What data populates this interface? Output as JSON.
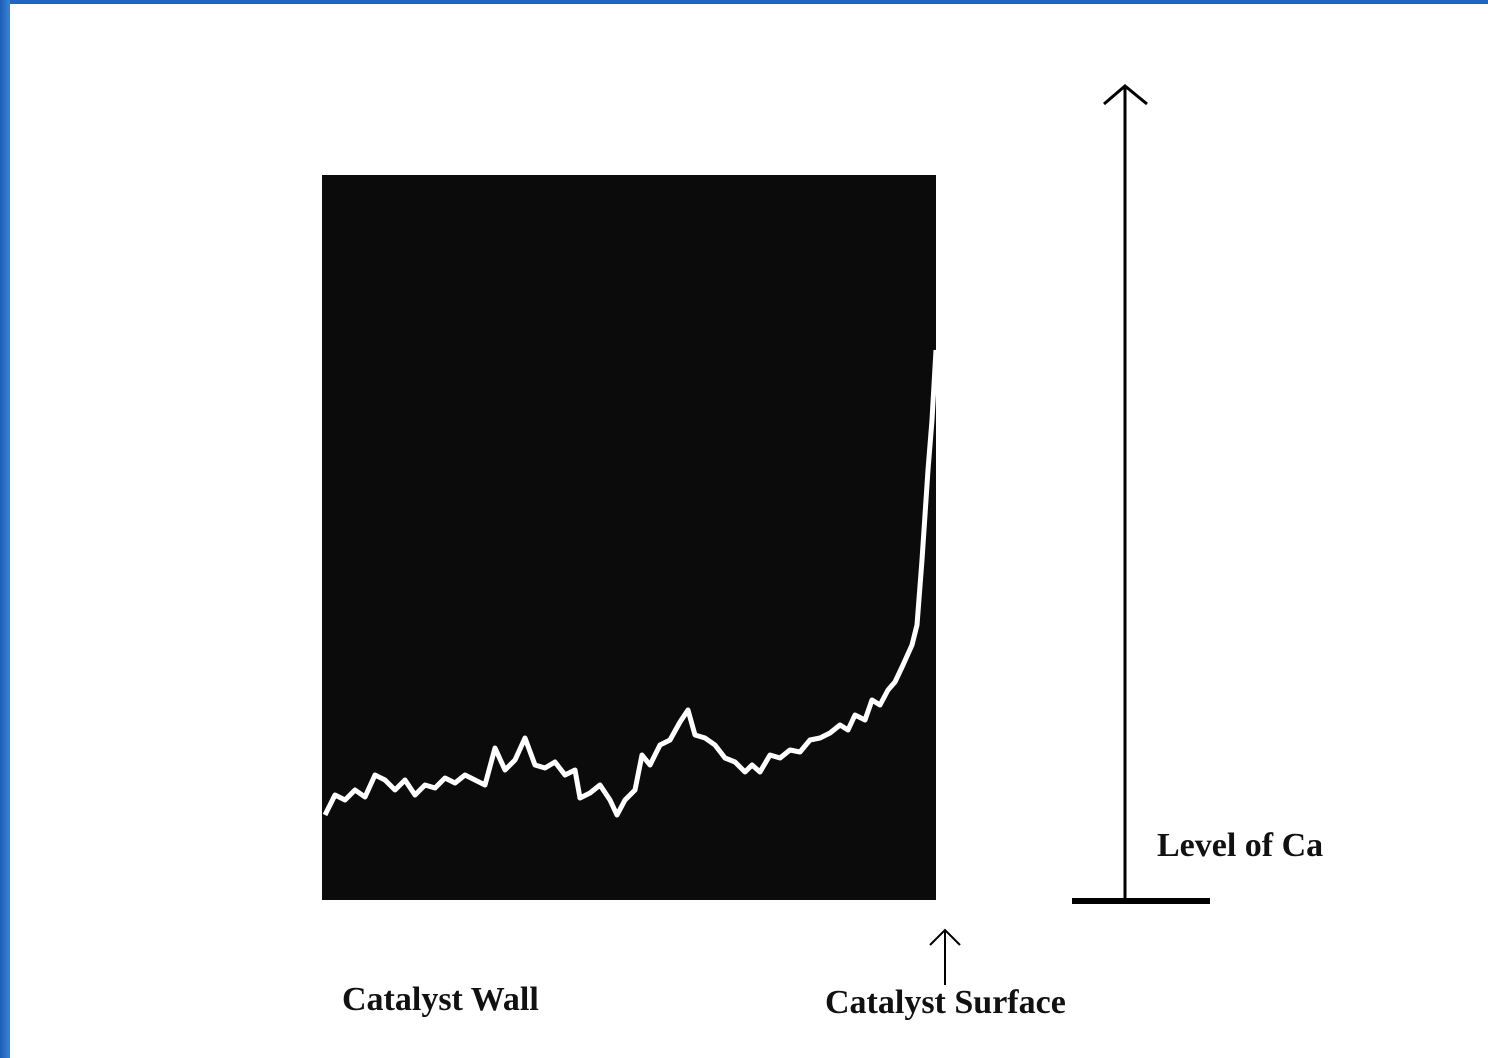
{
  "labels": {
    "catalyst_wall": "Catalyst Wall",
    "catalyst_surface": "Catalyst Surface",
    "level": "Level of Ca"
  }
}
